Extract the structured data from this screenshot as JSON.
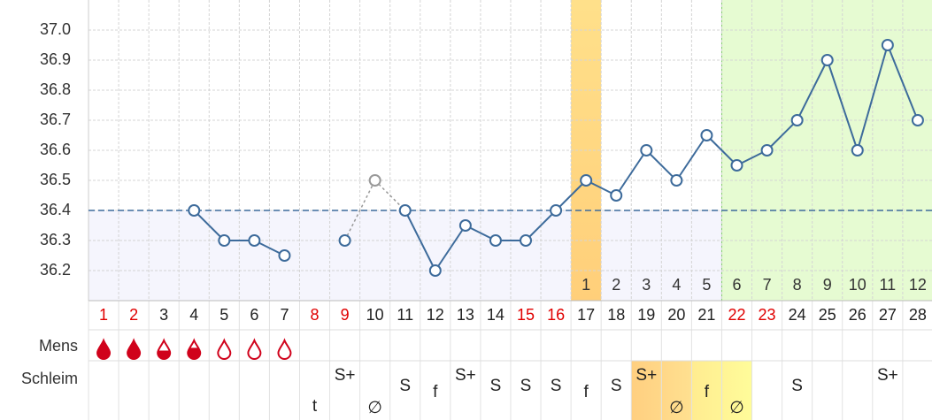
{
  "chart_data": {
    "type": "line",
    "days": [
      "1",
      "2",
      "3",
      "4",
      "5",
      "6",
      "7",
      "8",
      "9",
      "10",
      "11",
      "12",
      "13",
      "14",
      "15",
      "16",
      "17",
      "18",
      "19",
      "20",
      "21",
      "22",
      "23",
      "24",
      "25",
      "26",
      "27",
      "28"
    ],
    "day_red": [
      true,
      true,
      false,
      false,
      false,
      false,
      false,
      true,
      true,
      false,
      false,
      false,
      false,
      false,
      true,
      true,
      false,
      false,
      false,
      false,
      false,
      true,
      true,
      false,
      false,
      false,
      false,
      false
    ],
    "values": [
      null,
      null,
      null,
      36.4,
      36.3,
      36.3,
      36.25,
      null,
      36.3,
      36.5,
      36.4,
      36.2,
      36.35,
      36.3,
      36.3,
      36.4,
      36.5,
      36.45,
      36.6,
      36.5,
      36.65,
      36.55,
      36.6,
      36.7,
      36.9,
      36.6,
      36.95,
      36.7
    ],
    "excluded": [
      9
    ],
    "color": "#3d6b9b",
    "cover_line": 36.4,
    "ylim": [
      36.1,
      37.1
    ],
    "yticks": [
      36.2,
      36.3,
      36.4,
      36.5,
      36.6,
      36.7,
      36.8,
      36.9,
      {
        "value": 37,
        "label": "37.0"
      }
    ],
    "post_ovulation_days": [
      "1",
      "2",
      "3",
      "4",
      "5",
      "6",
      "7",
      "8",
      "9",
      "10",
      "11",
      "12"
    ],
    "row_labels": [
      "Mens",
      "Schleim"
    ],
    "schleim": [
      null,
      null,
      null,
      null,
      null,
      null,
      null,
      "t",
      "S+",
      "∅",
      "S",
      "f",
      "S+",
      "S",
      "S",
      "S",
      "f",
      "S",
      "S+",
      "∅",
      "f",
      "∅",
      null,
      "S",
      null,
      null,
      "S+",
      null
    ]
  }
}
